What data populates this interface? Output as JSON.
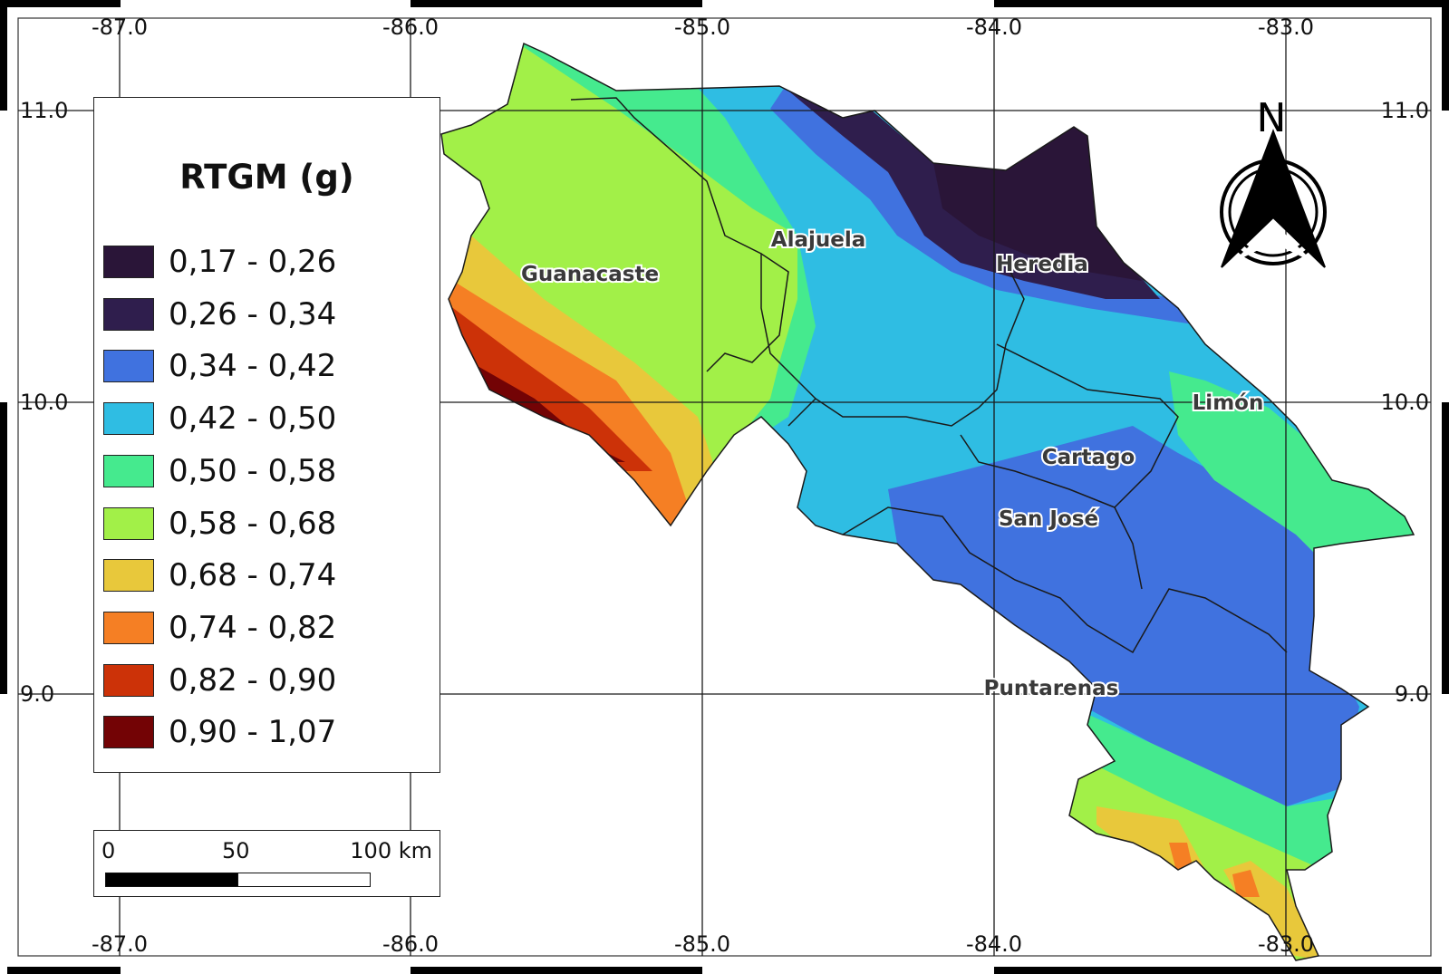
{
  "map": {
    "lon_ticks": [
      "-87.0",
      "-86.0",
      "-85.0",
      "-84.0",
      "-83.0"
    ],
    "lat_ticks": [
      "11.0",
      "10.0",
      "9.0"
    ],
    "provinces": {
      "guanacaste": "Guanacaste",
      "alajuela": "Alajuela",
      "heredia": "Heredia",
      "limon": "Limón",
      "cartago": "Cartago",
      "san_jose": "San José",
      "puntarenas": "Puntarenas"
    },
    "north_label": "N"
  },
  "legend": {
    "title": "RTGM (g)",
    "items": [
      {
        "label": "0,17 - 0,26",
        "color": "#2a1538"
      },
      {
        "label": "0,26 - 0,34",
        "color": "#2f1e4d"
      },
      {
        "label": "0,34 - 0,42",
        "color": "#4072df"
      },
      {
        "label": "0,42 - 0,50",
        "color": "#2fbde3"
      },
      {
        "label": "0,50 - 0,58",
        "color": "#45ea8e"
      },
      {
        "label": "0,58 - 0,68",
        "color": "#a2f048"
      },
      {
        "label": "0,68 - 0,74",
        "color": "#e8c83b"
      },
      {
        "label": "0,74 - 0,82",
        "color": "#f57f24"
      },
      {
        "label": "0,82 - 0,90",
        "color": "#cc3208"
      },
      {
        "label": "0,90 - 1,07",
        "color": "#730305"
      }
    ]
  },
  "scale_bar": {
    "labels": [
      "0",
      "50",
      "100 km"
    ]
  }
}
